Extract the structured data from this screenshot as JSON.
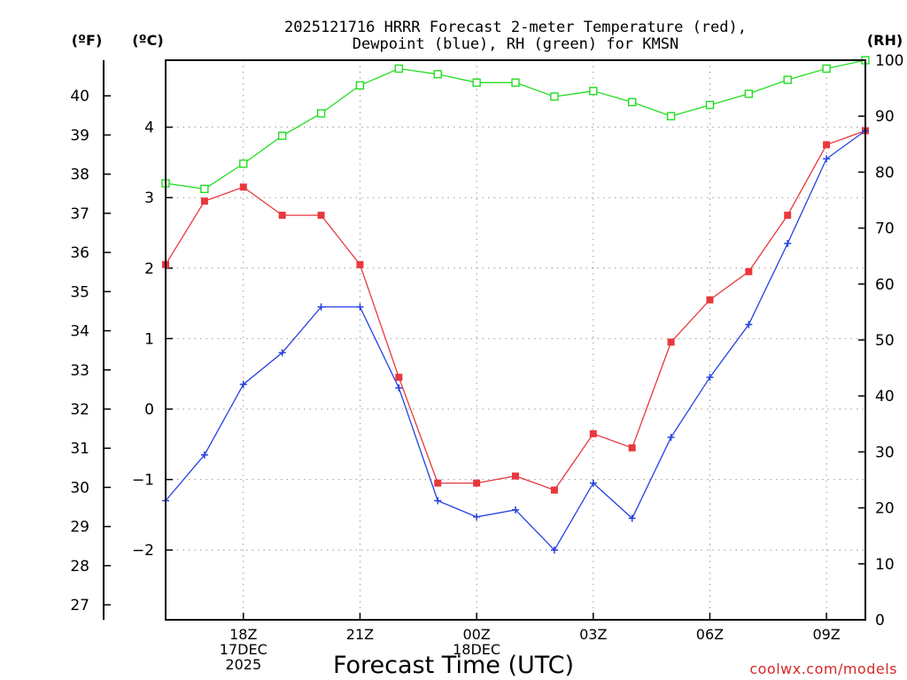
{
  "chart_data": {
    "type": "line",
    "title": "2025121716 HRRR Forecast 2-meter Temperature (red),",
    "subtitle": "Dewpoint (blue), RH (green) for KMSN",
    "xlabel": "Forecast Time (UTC)",
    "credit": "coolwx.com/models",
    "unit_labels": {
      "fahrenheit": "(ºF)",
      "celsius": "(ºC)",
      "rh": "(RH)"
    },
    "x_hours": [
      16,
      17,
      18,
      19,
      20,
      21,
      22,
      23,
      24,
      25,
      26,
      27,
      28,
      29,
      30,
      31,
      32,
      33,
      34
    ],
    "xlim": [
      16,
      34
    ],
    "x_ticks": [
      {
        "hour": 18,
        "lines": [
          "18Z",
          "17DEC",
          "2025"
        ]
      },
      {
        "hour": 21,
        "lines": [
          "21Z"
        ]
      },
      {
        "hour": 24,
        "lines": [
          "00Z",
          "18DEC"
        ]
      },
      {
        "hour": 27,
        "lines": [
          "03Z"
        ]
      },
      {
        "hour": 30,
        "lines": [
          "06Z"
        ]
      },
      {
        "hour": 33,
        "lines": [
          "09Z"
        ]
      }
    ],
    "y_celsius": {
      "lim": [
        -2.99,
        4.95
      ],
      "ticks": [
        -2,
        -1,
        0,
        1,
        2,
        3,
        4
      ],
      "tick_labels": [
        "−2",
        "−1",
        "0",
        "1",
        "2",
        "3",
        "4"
      ]
    },
    "y_fahrenheit": {
      "ticks": [
        27,
        28,
        29,
        30,
        31,
        32,
        33,
        34,
        35,
        36,
        37,
        38,
        39,
        40
      ],
      "tick_labels": [
        "27",
        "28",
        "29",
        "30",
        "31",
        "32",
        "33",
        "34",
        "35",
        "36",
        "37",
        "38",
        "39",
        "40"
      ]
    },
    "y_rh": {
      "lim": [
        0,
        100
      ],
      "ticks": [
        0,
        10,
        20,
        30,
        40,
        50,
        60,
        70,
        80,
        90,
        100
      ],
      "tick_labels": [
        "0",
        "10",
        "20",
        "30",
        "40",
        "50",
        "60",
        "70",
        "80",
        "90",
        "100"
      ]
    },
    "series": [
      {
        "name": "Temperature",
        "axis": "celsius",
        "color": "#e8383d",
        "marker": "filled-square",
        "values": [
          2.05,
          2.95,
          3.15,
          2.75,
          2.75,
          2.05,
          0.45,
          -1.05,
          -1.05,
          -0.95,
          -1.15,
          -0.35,
          -0.55,
          0.95,
          1.55,
          1.95,
          2.75,
          3.75,
          3.95
        ]
      },
      {
        "name": "Dewpoint",
        "axis": "celsius",
        "color": "#2341e0",
        "marker": "plus",
        "values": [
          -1.3,
          -0.65,
          0.35,
          0.8,
          1.45,
          1.45,
          0.3,
          -1.3,
          -1.53,
          -1.43,
          -2.0,
          -1.05,
          -1.55,
          -0.4,
          0.45,
          1.2,
          2.35,
          3.55,
          3.95
        ]
      },
      {
        "name": "RH",
        "axis": "rh",
        "color": "#22dd22",
        "marker": "open-square",
        "values": [
          78,
          77,
          81.5,
          86.5,
          90.5,
          95.5,
          98.5,
          97.5,
          96,
          96,
          93.5,
          94.5,
          92.5,
          90,
          92,
          94,
          96.5,
          98.5,
          100
        ]
      }
    ]
  }
}
